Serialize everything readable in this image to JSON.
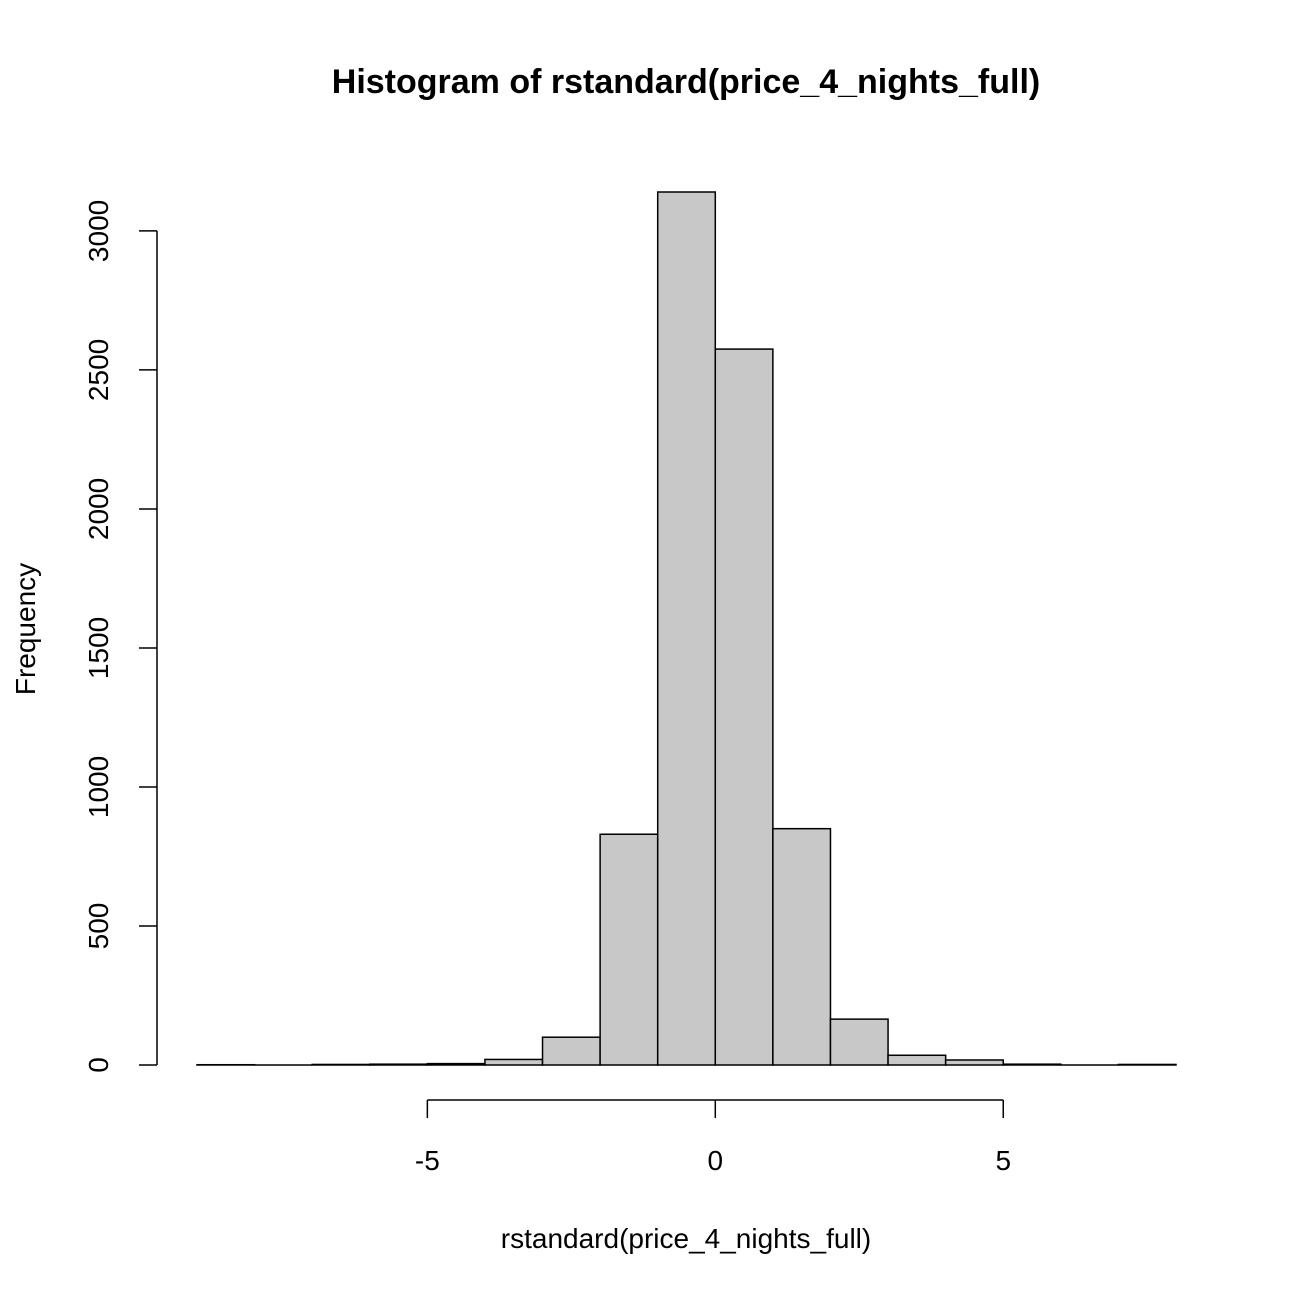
{
  "chart_data": {
    "type": "bar",
    "title": "Histogram of rstandard(price_4_nights_full)",
    "xlabel": "rstandard(price_4_nights_full)",
    "ylabel": "Frequency",
    "bin_edges": [
      -9,
      -8,
      -7,
      -6,
      -5,
      -4,
      -3,
      -2,
      -1,
      0,
      1,
      2,
      3,
      4,
      5,
      6,
      7,
      8
    ],
    "values": [
      1,
      0,
      2,
      3,
      5,
      20,
      100,
      830,
      3140,
      2575,
      850,
      165,
      35,
      18,
      3,
      0,
      2
    ],
    "xlim": [
      -9,
      8
    ],
    "ylim": [
      0,
      3140
    ],
    "x_ticks": [
      -5,
      0,
      5
    ],
    "y_ticks": [
      0,
      500,
      1000,
      1500,
      2000,
      2500,
      3000
    ],
    "grid": false,
    "bar_color": "#c8c8c8",
    "edge_color": "#000000"
  }
}
